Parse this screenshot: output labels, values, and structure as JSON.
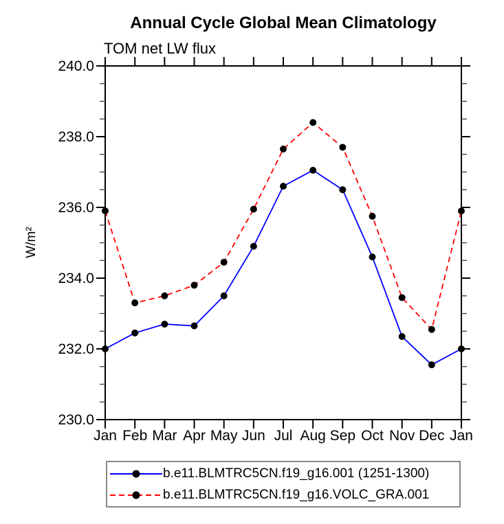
{
  "page": {
    "background": "#ffffff"
  },
  "colors": {
    "axis": "#000000",
    "minor_tick": "#3a3a3a",
    "text": "#000000",
    "legend_border": "#888888",
    "series_blue": "#0000ff",
    "series_red": "#ff0000",
    "marker": "#000000"
  },
  "chart_data": {
    "type": "line",
    "title": "Annual Cycle Global Mean Climatology",
    "subtitle": "TOM net LW flux",
    "ylabel": "W/m²",
    "x_categories": [
      "Jan",
      "Feb",
      "Mar",
      "Apr",
      "May",
      "Jun",
      "Jul",
      "Aug",
      "Sep",
      "Oct",
      "Nov",
      "Dec",
      "Jan"
    ],
    "ylim": [
      230.0,
      240.0
    ],
    "y_major_tick_step": 2.0,
    "y_minor_tick_step": 0.5,
    "y_tick_labels": [
      "240.0",
      "238.0",
      "236.0",
      "234.0",
      "232.0",
      "230.0"
    ],
    "grid": false,
    "legend_position": "bottom",
    "series": [
      {
        "name": "b.e11.BLMTRC5CN.f19_g16.001 (1251-1300)",
        "color": "#0000ff",
        "line_style": "solid",
        "marker": "filled-circle",
        "marker_color": "#000000",
        "values": [
          232.0,
          232.45,
          232.7,
          232.65,
          233.5,
          234.9,
          236.6,
          237.05,
          236.5,
          234.6,
          232.35,
          231.55,
          232.0
        ]
      },
      {
        "name": "b.e11.BLMTRC5CN.f19_g16.VOLC_GRA.001",
        "color": "#ff0000",
        "line_style": "dashed",
        "marker": "filled-circle",
        "marker_color": "#000000",
        "values": [
          235.9,
          233.3,
          233.5,
          233.8,
          234.45,
          235.95,
          237.65,
          238.4,
          237.7,
          235.75,
          233.45,
          232.55,
          235.9
        ]
      }
    ]
  }
}
